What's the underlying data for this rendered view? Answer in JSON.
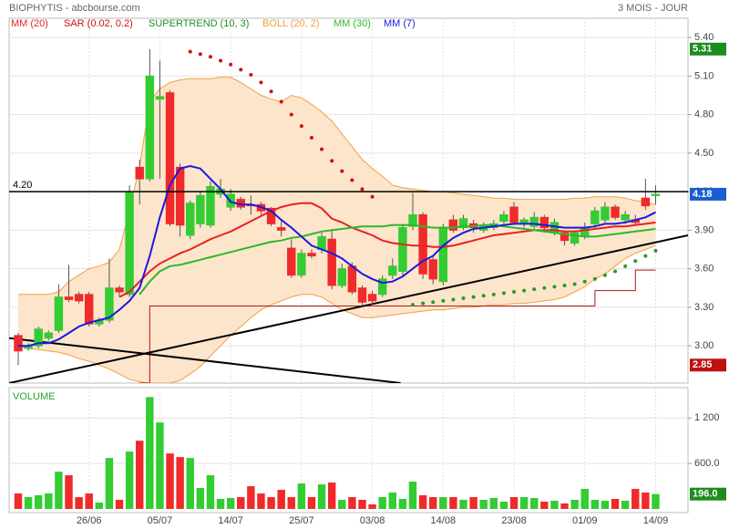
{
  "header": {
    "title": "BIOPHYTIS - abcbourse.com",
    "period": "3 MOIS - JOUR"
  },
  "chart_data": [
    {
      "type": "candlestick",
      "categories": [
        null,
        null,
        null,
        null,
        null,
        null,
        null,
        "26/06",
        null,
        null,
        null,
        null,
        null,
        null,
        "05/07",
        null,
        null,
        null,
        null,
        null,
        null,
        "14/07",
        null,
        null,
        null,
        null,
        null,
        null,
        "25/07",
        null,
        null,
        null,
        null,
        null,
        null,
        "03/08",
        null,
        null,
        null,
        null,
        null,
        null,
        "14/08",
        null,
        null,
        null,
        null,
        null,
        null,
        "23/08",
        null,
        null,
        null,
        null,
        null,
        null,
        "01/09",
        null,
        null,
        null,
        null,
        null,
        null,
        "14/09"
      ],
      "open": [
        3.08,
        2.98,
        3.0,
        3.06,
        3.12,
        3.38,
        3.4,
        3.4,
        3.17,
        3.2,
        3.45,
        3.4,
        4.39,
        4.3,
        4.92,
        4.97,
        4.39,
        3.86,
        3.95,
        3.94,
        4.18,
        4.08,
        4.14,
        4.1,
        4.1,
        4.07,
        3.92,
        3.76,
        3.55,
        3.72,
        3.75,
        3.83,
        3.47,
        3.62,
        3.45,
        3.4,
        3.4,
        3.55,
        3.58,
        3.93,
        4.02,
        3.67,
        3.5,
        3.98,
        3.92,
        3.95,
        3.9,
        3.92,
        3.97,
        4.08,
        3.95,
        3.93,
        4.0,
        3.88,
        3.88,
        3.8,
        3.86,
        3.95,
        3.98,
        4.08,
        3.98,
        3.98,
        4.15,
        4.17
      ],
      "high": [
        3.1,
        3.02,
        3.15,
        3.12,
        3.48,
        3.63,
        3.42,
        3.42,
        3.22,
        3.68,
        3.47,
        4.25,
        4.45,
        5.31,
        5.22,
        4.99,
        4.42,
        4.13,
        4.2,
        4.28,
        4.3,
        4.22,
        4.16,
        4.17,
        4.12,
        4.08,
        3.97,
        3.83,
        3.75,
        3.75,
        3.88,
        3.91,
        3.64,
        3.65,
        3.47,
        3.43,
        3.55,
        3.68,
        3.95,
        4.19,
        4.04,
        3.7,
        3.95,
        4.02,
        4.02,
        3.98,
        3.96,
        3.98,
        4.05,
        4.12,
        4.0,
        4.04,
        4.02,
        3.99,
        3.9,
        3.9,
        3.96,
        4.08,
        4.12,
        4.1,
        4.05,
        4.02,
        4.3,
        4.25
      ],
      "low": [
        2.85,
        2.96,
        2.98,
        3.04,
        3.1,
        3.34,
        3.33,
        3.15,
        3.15,
        3.18,
        3.38,
        3.38,
        4.1,
        4.28,
        4.3,
        3.93,
        3.85,
        3.83,
        3.92,
        3.92,
        4.15,
        4.05,
        4.06,
        4.02,
        4.02,
        3.93,
        3.85,
        3.53,
        3.53,
        3.68,
        3.72,
        3.44,
        3.45,
        3.4,
        3.31,
        3.32,
        3.38,
        3.52,
        3.55,
        3.9,
        3.52,
        3.48,
        3.47,
        3.88,
        3.9,
        3.88,
        3.88,
        3.9,
        3.94,
        3.94,
        3.92,
        3.91,
        3.88,
        3.86,
        3.78,
        3.78,
        3.83,
        3.92,
        3.96,
        3.98,
        3.95,
        3.94,
        4.06,
        4.1
      ],
      "close": [
        2.96,
        3.0,
        3.13,
        3.1,
        3.38,
        3.36,
        3.35,
        3.17,
        3.2,
        3.45,
        3.42,
        4.19,
        4.3,
        5.1,
        4.94,
        3.95,
        3.94,
        4.11,
        4.17,
        4.24,
        4.22,
        4.18,
        4.08,
        4.09,
        4.05,
        3.95,
        3.9,
        3.55,
        3.72,
        3.7,
        3.85,
        3.47,
        3.6,
        3.42,
        3.34,
        3.35,
        3.52,
        3.62,
        3.92,
        4.02,
        3.56,
        3.52,
        3.92,
        3.9,
        3.99,
        3.92,
        3.93,
        3.95,
        4.02,
        3.96,
        3.98,
        4.0,
        3.92,
        3.96,
        3.82,
        3.88,
        3.92,
        4.05,
        4.08,
        4.0,
        4.02,
        3.96,
        4.09,
        4.18
      ],
      "color_up": "#33cc33",
      "color_down": "#f02a2a",
      "xlim": [
        -0.9,
        66.2
      ],
      "ylim": [
        2.71,
        5.55
      ],
      "yticks": [
        {
          "value": 5.4,
          "label": "5.40"
        },
        {
          "value": 5.1,
          "label": "5.10"
        },
        {
          "value": 4.8,
          "label": "4.80"
        },
        {
          "value": 4.5,
          "label": "4.50"
        },
        {
          "value": 4.2,
          "label": "4.20"
        },
        {
          "value": 3.9,
          "label": "3.90"
        },
        {
          "value": 3.6,
          "label": "3.60"
        },
        {
          "value": 3.3,
          "label": "3.30"
        },
        {
          "value": 3.0,
          "label": "3.00"
        }
      ],
      "grid": true,
      "overlays": [
        {
          "name": "MM (20)",
          "color": "#e8231f",
          "style": "line",
          "values": [
            null,
            null,
            null,
            null,
            null,
            null,
            null,
            null,
            null,
            null,
            3.38,
            3.42,
            3.5,
            3.58,
            3.64,
            3.68,
            3.72,
            3.75,
            3.79,
            3.83,
            3.86,
            3.89,
            3.93,
            3.97,
            4.01,
            4.05,
            4.08,
            4.1,
            4.11,
            4.11,
            4.07,
            3.99,
            3.96,
            3.92,
            3.89,
            3.86,
            3.82,
            3.8,
            3.79,
            3.78,
            3.78,
            3.77,
            3.77,
            3.78,
            3.8,
            3.82,
            3.84,
            3.86,
            3.87,
            3.88,
            3.89,
            3.9,
            3.9,
            3.9,
            3.89,
            3.89,
            3.9,
            3.91,
            3.92,
            3.93,
            3.93,
            3.94,
            3.95,
            3.96
          ]
        },
        {
          "name": "SAR (0.02, 0.2)",
          "color": "#cc1111",
          "color_below": "#2a9a2a",
          "style": "dots",
          "values": [
            null,
            null,
            null,
            null,
            null,
            null,
            null,
            null,
            null,
            null,
            null,
            null,
            null,
            null,
            null,
            null,
            null,
            5.29,
            5.27,
            5.25,
            5.22,
            5.19,
            5.15,
            5.11,
            5.05,
            4.98,
            4.9,
            4.8,
            4.71,
            4.62,
            4.53,
            4.44,
            4.36,
            4.29,
            4.22,
            4.16,
            null,
            null,
            null,
            3.32,
            3.33,
            3.34,
            3.35,
            3.36,
            3.37,
            3.38,
            3.39,
            3.4,
            3.41,
            3.42,
            3.43,
            3.44,
            3.45,
            3.46,
            3.47,
            3.48,
            3.5,
            3.52,
            3.55,
            3.58,
            3.62,
            3.66,
            3.7,
            3.74
          ]
        },
        {
          "name": "SUPERTREND (10, 3)",
          "color": "#1f8f1f",
          "line_color": "#b01818",
          "style": "step",
          "values": [
            null,
            null,
            null,
            null,
            null,
            null,
            null,
            null,
            null,
            null,
            null,
            null,
            2.71,
            3.31,
            3.31,
            3.31,
            3.31,
            3.31,
            3.31,
            3.31,
            3.31,
            3.31,
            3.31,
            3.31,
            3.31,
            3.31,
            3.31,
            3.31,
            3.31,
            3.31,
            3.31,
            3.31,
            3.31,
            3.31,
            3.31,
            3.31,
            3.31,
            3.31,
            3.31,
            3.31,
            3.31,
            3.31,
            3.31,
            3.31,
            3.31,
            3.31,
            3.31,
            3.31,
            3.31,
            3.31,
            3.31,
            3.31,
            3.31,
            3.31,
            3.31,
            3.31,
            3.31,
            3.43,
            3.43,
            3.43,
            3.43,
            3.59,
            3.59,
            3.59
          ]
        },
        {
          "name": "BOLL (20, 2)",
          "color": "#f0a040",
          "fill": "#fde5cc",
          "style": "band",
          "upper": [
            3.4,
            3.4,
            3.4,
            3.4,
            3.42,
            3.5,
            3.55,
            3.6,
            3.62,
            3.65,
            3.75,
            4.05,
            4.4,
            4.9,
            5.0,
            5.05,
            5.07,
            5.08,
            5.08,
            5.08,
            5.09,
            5.09,
            5.05,
            5.0,
            4.95,
            4.92,
            4.9,
            4.95,
            4.93,
            4.88,
            4.82,
            4.75,
            4.65,
            4.55,
            4.45,
            4.38,
            4.32,
            4.25,
            4.23,
            4.22,
            4.21,
            4.2,
            4.2,
            4.19,
            4.18,
            4.17,
            4.16,
            4.15,
            4.15,
            4.14,
            4.14,
            4.14,
            4.14,
            4.14,
            4.14,
            4.15,
            4.15,
            4.16,
            4.16,
            4.16,
            4.15,
            4.13,
            4.12,
            4.1
          ],
          "lower": [
            3.0,
            2.98,
            2.97,
            2.96,
            2.95,
            2.93,
            2.9,
            2.88,
            2.85,
            2.82,
            2.78,
            2.74,
            2.72,
            2.71,
            2.71,
            2.71,
            2.73,
            2.78,
            2.84,
            2.92,
            3.0,
            3.08,
            3.15,
            3.22,
            3.28,
            3.32,
            3.35,
            3.38,
            3.4,
            3.4,
            3.38,
            3.33,
            3.28,
            3.25,
            3.22,
            3.22,
            3.23,
            3.24,
            3.25,
            3.26,
            3.27,
            3.28,
            3.28,
            3.29,
            3.3,
            3.3,
            3.31,
            3.32,
            3.32,
            3.33,
            3.33,
            3.34,
            3.35,
            3.36,
            3.38,
            3.42,
            3.46,
            3.52,
            3.56,
            3.62,
            3.68,
            3.72,
            3.75,
            3.78
          ]
        },
        {
          "name": "MM (30)",
          "color": "#2db82d",
          "style": "line",
          "values": [
            null,
            null,
            null,
            null,
            null,
            null,
            null,
            null,
            null,
            null,
            null,
            null,
            3.4,
            3.5,
            3.58,
            3.62,
            3.63,
            3.65,
            3.67,
            3.69,
            3.71,
            3.73,
            3.75,
            3.77,
            3.79,
            3.81,
            3.82,
            3.84,
            3.85,
            3.87,
            3.89,
            3.9,
            3.91,
            3.92,
            3.93,
            3.93,
            3.93,
            3.94,
            3.94,
            3.94,
            3.93,
            3.92,
            3.92,
            3.92,
            3.93,
            3.93,
            3.94,
            3.94,
            3.93,
            3.92,
            3.91,
            3.9,
            3.89,
            3.88,
            3.87,
            3.86,
            3.85,
            3.85,
            3.86,
            3.87,
            3.88,
            3.89,
            3.9,
            3.91
          ]
        },
        {
          "name": "MM (7)",
          "color": "#1a1adf",
          "style": "line",
          "values": [
            3.0,
            3.0,
            3.02,
            3.02,
            3.05,
            3.1,
            3.15,
            3.18,
            3.2,
            3.22,
            3.28,
            3.35,
            3.45,
            3.7,
            4.0,
            4.25,
            4.38,
            4.4,
            4.38,
            4.3,
            4.22,
            4.12,
            4.1,
            4.1,
            4.08,
            4.05,
            3.98,
            3.92,
            3.85,
            3.78,
            3.75,
            3.72,
            3.68,
            3.62,
            3.56,
            3.52,
            3.49,
            3.5,
            3.54,
            3.6,
            3.66,
            3.7,
            3.78,
            3.84,
            3.88,
            3.91,
            3.92,
            3.93,
            3.94,
            3.95,
            3.95,
            3.95,
            3.94,
            3.93,
            3.92,
            3.92,
            3.92,
            3.93,
            3.95,
            3.95,
            3.96,
            3.98,
            4.0,
            4.04
          ]
        }
      ],
      "hline": {
        "value": 4.2,
        "label": "4.20"
      },
      "trendlines": [
        {
          "x": [
            -0.9,
            66.2
          ],
          "y": [
            2.71,
            3.86
          ]
        },
        {
          "x": [
            -0.9,
            37.8
          ],
          "y": [
            3.06,
            2.71
          ]
        }
      ],
      "tags": [
        {
          "value": 5.31,
          "color": "#1e8c1e"
        },
        {
          "value": 4.18,
          "color": "#1a5fd0"
        },
        {
          "value": 2.85,
          "color": "#c01010"
        }
      ]
    },
    {
      "type": "bar",
      "title": "VOLUME",
      "values": [
        204,
        156,
        180,
        204,
        492,
        444,
        156,
        204,
        84,
        672,
        120,
        756,
        900,
        1476,
        1140,
        732,
        684,
        672,
        276,
        444,
        132,
        144,
        156,
        300,
        204,
        156,
        252,
        156,
        336,
        156,
        324,
        348,
        120,
        156,
        120,
        60,
        156,
        216,
        132,
        360,
        180,
        156,
        156,
        156,
        120,
        156,
        120,
        144,
        96,
        156,
        156,
        144,
        96,
        108,
        72,
        120,
        264,
        120,
        108,
        132,
        108,
        264,
        216,
        196
      ],
      "ylim": [
        0,
        1600
      ],
      "yticks": [
        {
          "value": 1200,
          "label": "1 200"
        },
        {
          "value": 600,
          "label": "600.0"
        }
      ],
      "grid": true,
      "tag": {
        "value": 196,
        "label": "196.0",
        "color": "#1e8c1e"
      }
    }
  ]
}
